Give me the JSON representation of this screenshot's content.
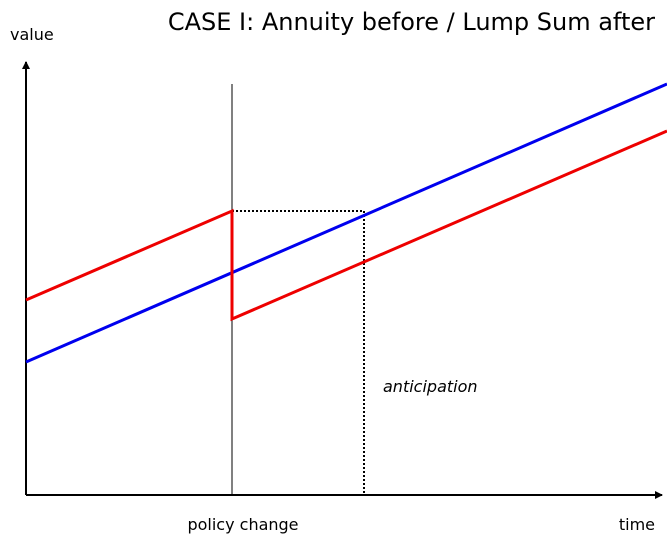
{
  "title": "CASE I: Annuity before / Lump Sum after",
  "axes": {
    "y_label": "value",
    "x_label": "time"
  },
  "labels": {
    "event": "policy change",
    "annotation": "anticipation"
  }
}
